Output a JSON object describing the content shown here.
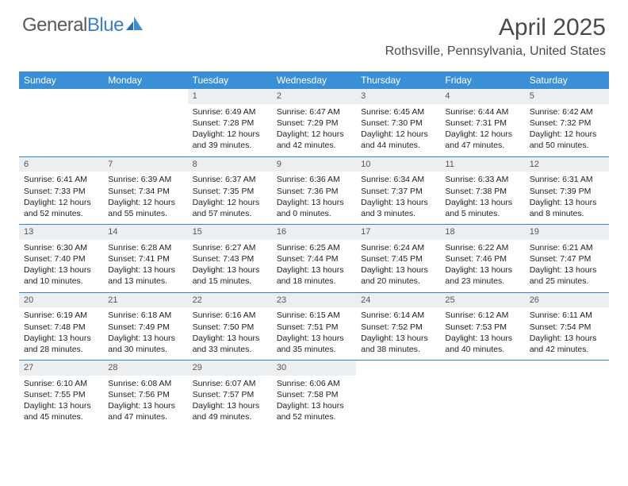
{
  "logo": {
    "text1": "General",
    "text2": "Blue"
  },
  "title": "April 2025",
  "location": "Rothsville, Pennsylvania, United States",
  "colors": {
    "header_bg": "#3b8fd4",
    "header_fg": "#ffffff",
    "daynum_bg": "#eceff1",
    "rule": "#3b7fc4",
    "text": "#222222"
  },
  "day_names": [
    "Sunday",
    "Monday",
    "Tuesday",
    "Wednesday",
    "Thursday",
    "Friday",
    "Saturday"
  ],
  "weeks": [
    [
      null,
      null,
      {
        "n": "1",
        "sr": "Sunrise: 6:49 AM",
        "ss": "Sunset: 7:28 PM",
        "d1": "Daylight: 12 hours",
        "d2": "and 39 minutes."
      },
      {
        "n": "2",
        "sr": "Sunrise: 6:47 AM",
        "ss": "Sunset: 7:29 PM",
        "d1": "Daylight: 12 hours",
        "d2": "and 42 minutes."
      },
      {
        "n": "3",
        "sr": "Sunrise: 6:45 AM",
        "ss": "Sunset: 7:30 PM",
        "d1": "Daylight: 12 hours",
        "d2": "and 44 minutes."
      },
      {
        "n": "4",
        "sr": "Sunrise: 6:44 AM",
        "ss": "Sunset: 7:31 PM",
        "d1": "Daylight: 12 hours",
        "d2": "and 47 minutes."
      },
      {
        "n": "5",
        "sr": "Sunrise: 6:42 AM",
        "ss": "Sunset: 7:32 PM",
        "d1": "Daylight: 12 hours",
        "d2": "and 50 minutes."
      }
    ],
    [
      {
        "n": "6",
        "sr": "Sunrise: 6:41 AM",
        "ss": "Sunset: 7:33 PM",
        "d1": "Daylight: 12 hours",
        "d2": "and 52 minutes."
      },
      {
        "n": "7",
        "sr": "Sunrise: 6:39 AM",
        "ss": "Sunset: 7:34 PM",
        "d1": "Daylight: 12 hours",
        "d2": "and 55 minutes."
      },
      {
        "n": "8",
        "sr": "Sunrise: 6:37 AM",
        "ss": "Sunset: 7:35 PM",
        "d1": "Daylight: 12 hours",
        "d2": "and 57 minutes."
      },
      {
        "n": "9",
        "sr": "Sunrise: 6:36 AM",
        "ss": "Sunset: 7:36 PM",
        "d1": "Daylight: 13 hours",
        "d2": "and 0 minutes."
      },
      {
        "n": "10",
        "sr": "Sunrise: 6:34 AM",
        "ss": "Sunset: 7:37 PM",
        "d1": "Daylight: 13 hours",
        "d2": "and 3 minutes."
      },
      {
        "n": "11",
        "sr": "Sunrise: 6:33 AM",
        "ss": "Sunset: 7:38 PM",
        "d1": "Daylight: 13 hours",
        "d2": "and 5 minutes."
      },
      {
        "n": "12",
        "sr": "Sunrise: 6:31 AM",
        "ss": "Sunset: 7:39 PM",
        "d1": "Daylight: 13 hours",
        "d2": "and 8 minutes."
      }
    ],
    [
      {
        "n": "13",
        "sr": "Sunrise: 6:30 AM",
        "ss": "Sunset: 7:40 PM",
        "d1": "Daylight: 13 hours",
        "d2": "and 10 minutes."
      },
      {
        "n": "14",
        "sr": "Sunrise: 6:28 AM",
        "ss": "Sunset: 7:41 PM",
        "d1": "Daylight: 13 hours",
        "d2": "and 13 minutes."
      },
      {
        "n": "15",
        "sr": "Sunrise: 6:27 AM",
        "ss": "Sunset: 7:43 PM",
        "d1": "Daylight: 13 hours",
        "d2": "and 15 minutes."
      },
      {
        "n": "16",
        "sr": "Sunrise: 6:25 AM",
        "ss": "Sunset: 7:44 PM",
        "d1": "Daylight: 13 hours",
        "d2": "and 18 minutes."
      },
      {
        "n": "17",
        "sr": "Sunrise: 6:24 AM",
        "ss": "Sunset: 7:45 PM",
        "d1": "Daylight: 13 hours",
        "d2": "and 20 minutes."
      },
      {
        "n": "18",
        "sr": "Sunrise: 6:22 AM",
        "ss": "Sunset: 7:46 PM",
        "d1": "Daylight: 13 hours",
        "d2": "and 23 minutes."
      },
      {
        "n": "19",
        "sr": "Sunrise: 6:21 AM",
        "ss": "Sunset: 7:47 PM",
        "d1": "Daylight: 13 hours",
        "d2": "and 25 minutes."
      }
    ],
    [
      {
        "n": "20",
        "sr": "Sunrise: 6:19 AM",
        "ss": "Sunset: 7:48 PM",
        "d1": "Daylight: 13 hours",
        "d2": "and 28 minutes."
      },
      {
        "n": "21",
        "sr": "Sunrise: 6:18 AM",
        "ss": "Sunset: 7:49 PM",
        "d1": "Daylight: 13 hours",
        "d2": "and 30 minutes."
      },
      {
        "n": "22",
        "sr": "Sunrise: 6:16 AM",
        "ss": "Sunset: 7:50 PM",
        "d1": "Daylight: 13 hours",
        "d2": "and 33 minutes."
      },
      {
        "n": "23",
        "sr": "Sunrise: 6:15 AM",
        "ss": "Sunset: 7:51 PM",
        "d1": "Daylight: 13 hours",
        "d2": "and 35 minutes."
      },
      {
        "n": "24",
        "sr": "Sunrise: 6:14 AM",
        "ss": "Sunset: 7:52 PM",
        "d1": "Daylight: 13 hours",
        "d2": "and 38 minutes."
      },
      {
        "n": "25",
        "sr": "Sunrise: 6:12 AM",
        "ss": "Sunset: 7:53 PM",
        "d1": "Daylight: 13 hours",
        "d2": "and 40 minutes."
      },
      {
        "n": "26",
        "sr": "Sunrise: 6:11 AM",
        "ss": "Sunset: 7:54 PM",
        "d1": "Daylight: 13 hours",
        "d2": "and 42 minutes."
      }
    ],
    [
      {
        "n": "27",
        "sr": "Sunrise: 6:10 AM",
        "ss": "Sunset: 7:55 PM",
        "d1": "Daylight: 13 hours",
        "d2": "and 45 minutes."
      },
      {
        "n": "28",
        "sr": "Sunrise: 6:08 AM",
        "ss": "Sunset: 7:56 PM",
        "d1": "Daylight: 13 hours",
        "d2": "and 47 minutes."
      },
      {
        "n": "29",
        "sr": "Sunrise: 6:07 AM",
        "ss": "Sunset: 7:57 PM",
        "d1": "Daylight: 13 hours",
        "d2": "and 49 minutes."
      },
      {
        "n": "30",
        "sr": "Sunrise: 6:06 AM",
        "ss": "Sunset: 7:58 PM",
        "d1": "Daylight: 13 hours",
        "d2": "and 52 minutes."
      },
      null,
      null,
      null
    ]
  ]
}
